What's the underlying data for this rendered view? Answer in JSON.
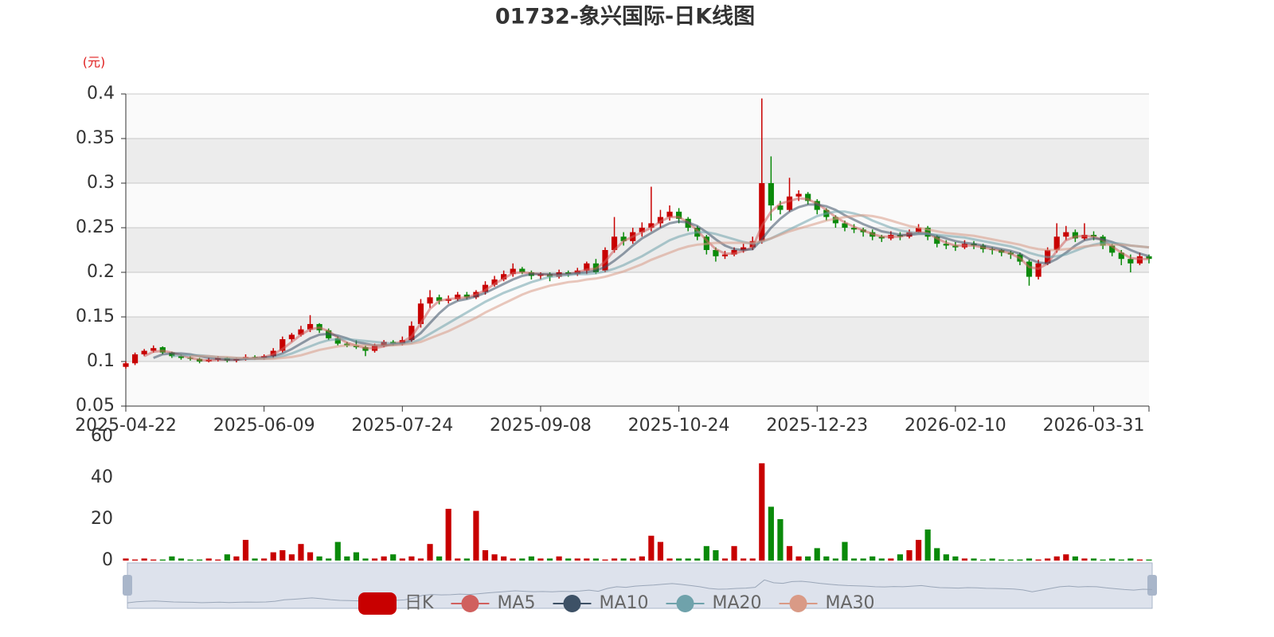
{
  "chart_data": {
    "type": "candlestick",
    "title": "01732-象兴国际-日K线图",
    "y_axis_name": "(元)",
    "candle_name": "日K",
    "up_color": "#c80000",
    "down_color": "#0a8a0a",
    "grid": true,
    "legend_position": "bottom",
    "categories": [
      "2025-04-22",
      null,
      null,
      null,
      null,
      null,
      null,
      null,
      null,
      null,
      null,
      null,
      null,
      null,
      null,
      "2025-06-09",
      null,
      null,
      null,
      null,
      null,
      null,
      null,
      null,
      null,
      null,
      null,
      null,
      null,
      null,
      "2025-07-24",
      null,
      null,
      null,
      null,
      null,
      null,
      null,
      null,
      null,
      null,
      null,
      null,
      null,
      null,
      "2025-09-08",
      null,
      null,
      null,
      null,
      null,
      null,
      null,
      null,
      null,
      null,
      null,
      null,
      null,
      null,
      "2025-10-24",
      null,
      null,
      null,
      null,
      null,
      null,
      null,
      null,
      null,
      null,
      null,
      null,
      null,
      null,
      "2025-12-23",
      null,
      null,
      null,
      null,
      null,
      null,
      null,
      null,
      null,
      null,
      null,
      null,
      null,
      null,
      "2026-02-10",
      null,
      null,
      null,
      null,
      null,
      null,
      null,
      null,
      null,
      null,
      null,
      null,
      null,
      null,
      "2026-03-31",
      null,
      null,
      null,
      null,
      null,
      null
    ],
    "open": [
      0.094,
      0.098,
      0.108,
      0.112,
      0.116,
      0.11,
      0.106,
      0.104,
      0.103,
      0.1,
      0.102,
      0.104,
      0.101,
      0.103,
      0.105,
      0.104,
      0.106,
      0.112,
      0.125,
      0.13,
      0.136,
      0.142,
      0.135,
      0.126,
      0.12,
      0.118,
      0.116,
      0.112,
      0.118,
      0.122,
      0.12,
      0.124,
      0.142,
      0.165,
      0.172,
      0.168,
      0.17,
      0.175,
      0.172,
      0.178,
      0.186,
      0.192,
      0.198,
      0.204,
      0.2,
      0.196,
      0.198,
      0.195,
      0.2,
      0.198,
      0.202,
      0.21,
      0.202,
      0.225,
      0.24,
      0.235,
      0.245,
      0.25,
      0.255,
      0.262,
      0.268,
      0.26,
      0.25,
      0.24,
      0.225,
      0.218,
      0.22,
      0.225,
      0.228,
      0.235,
      0.3,
      0.275,
      0.27,
      0.285,
      0.288,
      0.28,
      0.27,
      0.262,
      0.255,
      0.25,
      0.248,
      0.245,
      0.24,
      0.238,
      0.242,
      0.24,
      0.245,
      0.25,
      0.24,
      0.232,
      0.23,
      0.228,
      0.232,
      0.23,
      0.226,
      0.225,
      0.222,
      0.22,
      0.212,
      0.195,
      0.21,
      0.225,
      0.24,
      0.245,
      0.238,
      0.242,
      0.24,
      0.23,
      0.222,
      0.215,
      0.21,
      0.218
    ],
    "high": [
      0.1,
      0.11,
      0.114,
      0.118,
      0.117,
      0.111,
      0.108,
      0.106,
      0.104,
      0.104,
      0.106,
      0.105,
      0.104,
      0.108,
      0.107,
      0.108,
      0.115,
      0.128,
      0.132,
      0.14,
      0.152,
      0.143,
      0.137,
      0.128,
      0.122,
      0.124,
      0.118,
      0.12,
      0.124,
      0.124,
      0.128,
      0.145,
      0.17,
      0.18,
      0.175,
      0.174,
      0.178,
      0.178,
      0.18,
      0.19,
      0.196,
      0.202,
      0.21,
      0.206,
      0.202,
      0.2,
      0.2,
      0.203,
      0.202,
      0.205,
      0.212,
      0.215,
      0.228,
      0.262,
      0.245,
      0.25,
      0.256,
      0.296,
      0.27,
      0.275,
      0.272,
      0.262,
      0.252,
      0.242,
      0.228,
      0.224,
      0.228,
      0.232,
      0.24,
      0.395,
      0.33,
      0.28,
      0.306,
      0.292,
      0.29,
      0.282,
      0.272,
      0.264,
      0.258,
      0.254,
      0.25,
      0.248,
      0.242,
      0.246,
      0.245,
      0.248,
      0.254,
      0.252,
      0.242,
      0.236,
      0.234,
      0.236,
      0.235,
      0.232,
      0.228,
      0.226,
      0.224,
      0.222,
      0.214,
      0.214,
      0.228,
      0.255,
      0.252,
      0.248,
      0.255,
      0.246,
      0.242,
      0.232,
      0.225,
      0.22,
      0.222,
      0.22
    ],
    "low": [
      0.092,
      0.096,
      0.106,
      0.11,
      0.108,
      0.104,
      0.102,
      0.101,
      0.098,
      0.099,
      0.1,
      0.099,
      0.099,
      0.101,
      0.102,
      0.102,
      0.104,
      0.11,
      0.122,
      0.128,
      0.133,
      0.132,
      0.124,
      0.118,
      0.116,
      0.114,
      0.106,
      0.11,
      0.116,
      0.118,
      0.118,
      0.122,
      0.138,
      0.16,
      0.164,
      0.165,
      0.168,
      0.17,
      0.17,
      0.175,
      0.184,
      0.19,
      0.195,
      0.198,
      0.192,
      0.192,
      0.19,
      0.193,
      0.195,
      0.196,
      0.198,
      0.198,
      0.2,
      0.222,
      0.23,
      0.232,
      0.24,
      0.246,
      0.25,
      0.258,
      0.255,
      0.246,
      0.236,
      0.22,
      0.212,
      0.215,
      0.218,
      0.222,
      0.225,
      0.232,
      0.258,
      0.265,
      0.268,
      0.28,
      0.276,
      0.265,
      0.258,
      0.25,
      0.246,
      0.244,
      0.24,
      0.236,
      0.234,
      0.236,
      0.236,
      0.238,
      0.244,
      0.236,
      0.228,
      0.226,
      0.224,
      0.226,
      0.226,
      0.222,
      0.22,
      0.218,
      0.215,
      0.208,
      0.185,
      0.192,
      0.208,
      0.222,
      0.236,
      0.234,
      0.236,
      0.236,
      0.226,
      0.218,
      0.208,
      0.2,
      0.208,
      0.21
    ],
    "close": [
      0.098,
      0.108,
      0.112,
      0.115,
      0.11,
      0.106,
      0.104,
      0.103,
      0.1,
      0.102,
      0.104,
      0.101,
      0.103,
      0.105,
      0.104,
      0.106,
      0.112,
      0.125,
      0.13,
      0.136,
      0.142,
      0.135,
      0.126,
      0.12,
      0.118,
      0.116,
      0.112,
      0.118,
      0.122,
      0.12,
      0.124,
      0.14,
      0.165,
      0.172,
      0.168,
      0.17,
      0.175,
      0.172,
      0.178,
      0.186,
      0.192,
      0.198,
      0.204,
      0.2,
      0.196,
      0.198,
      0.195,
      0.2,
      0.198,
      0.202,
      0.21,
      0.2,
      0.225,
      0.24,
      0.235,
      0.245,
      0.25,
      0.255,
      0.262,
      0.268,
      0.26,
      0.25,
      0.24,
      0.225,
      0.218,
      0.22,
      0.225,
      0.228,
      0.235,
      0.3,
      0.275,
      0.27,
      0.285,
      0.288,
      0.28,
      0.27,
      0.262,
      0.255,
      0.25,
      0.248,
      0.245,
      0.24,
      0.238,
      0.242,
      0.24,
      0.245,
      0.25,
      0.24,
      0.232,
      0.23,
      0.228,
      0.232,
      0.23,
      0.226,
      0.225,
      0.222,
      0.22,
      0.212,
      0.195,
      0.21,
      0.225,
      0.24,
      0.245,
      0.238,
      0.242,
      0.24,
      0.23,
      0.222,
      0.215,
      0.21,
      0.218,
      0.215
    ],
    "ylim": [
      0.05,
      0.4
    ],
    "yticks": [
      0.05,
      0.1,
      0.15,
      0.2,
      0.25,
      0.3,
      0.35,
      0.4
    ],
    "ma_series": [
      {
        "name": "MA5",
        "color": "#d0605e",
        "values": [
          null,
          null,
          0.106,
          0.111,
          0.112,
          0.11,
          0.107,
          0.104,
          0.102,
          0.101,
          0.102,
          0.102,
          0.102,
          0.103,
          0.104,
          0.105,
          0.108,
          0.114,
          0.122,
          0.13,
          0.136,
          0.138,
          0.134,
          0.127,
          0.121,
          0.118,
          0.115,
          0.115,
          0.117,
          0.12,
          0.122,
          0.128,
          0.143,
          0.159,
          0.168,
          0.17,
          0.171,
          0.172,
          0.175,
          0.18,
          0.187,
          0.193,
          0.199,
          0.2,
          0.199,
          0.198,
          0.197,
          0.197,
          0.198,
          0.2,
          0.203,
          0.204,
          0.212,
          0.225,
          0.235,
          0.24,
          0.245,
          0.25,
          0.257,
          0.262,
          0.262,
          0.256,
          0.247,
          0.236,
          0.226,
          0.221,
          0.221,
          0.224,
          0.228,
          0.252,
          0.268,
          0.277,
          0.28,
          0.283,
          0.282,
          0.277,
          0.27,
          0.262,
          0.256,
          0.251,
          0.247,
          0.243,
          0.24,
          0.24,
          0.24,
          0.243,
          0.245,
          0.244,
          0.238,
          0.233,
          0.23,
          0.23,
          0.23,
          0.228,
          0.226,
          0.224,
          0.221,
          0.216,
          0.206,
          0.204,
          0.21,
          0.224,
          0.236,
          0.24,
          0.241,
          0.24,
          0.236,
          0.229,
          0.222,
          0.216,
          0.215,
          0.215
        ]
      },
      {
        "name": "MA10",
        "color": "#3d5166",
        "values": [
          null,
          null,
          null,
          0.104,
          0.108,
          0.109,
          0.109,
          0.108,
          0.106,
          0.104,
          0.103,
          0.102,
          0.102,
          0.103,
          0.103,
          0.104,
          0.106,
          0.109,
          0.114,
          0.12,
          0.126,
          0.13,
          0.131,
          0.129,
          0.126,
          0.122,
          0.12,
          0.118,
          0.118,
          0.119,
          0.12,
          0.124,
          0.132,
          0.143,
          0.154,
          0.163,
          0.168,
          0.17,
          0.173,
          0.177,
          0.182,
          0.187,
          0.192,
          0.196,
          0.198,
          0.198,
          0.198,
          0.198,
          0.198,
          0.199,
          0.2,
          0.202,
          0.206,
          0.213,
          0.221,
          0.23,
          0.238,
          0.244,
          0.25,
          0.255,
          0.257,
          0.256,
          0.252,
          0.245,
          0.237,
          0.23,
          0.226,
          0.225,
          0.226,
          0.237,
          0.25,
          0.26,
          0.268,
          0.273,
          0.276,
          0.276,
          0.274,
          0.27,
          0.264,
          0.259,
          0.254,
          0.25,
          0.246,
          0.244,
          0.242,
          0.242,
          0.243,
          0.243,
          0.241,
          0.238,
          0.235,
          0.233,
          0.232,
          0.23,
          0.228,
          0.226,
          0.224,
          0.221,
          0.215,
          0.211,
          0.21,
          0.215,
          0.222,
          0.23,
          0.236,
          0.238,
          0.237,
          0.234,
          0.23,
          0.225,
          0.221,
          0.218
        ]
      },
      {
        "name": "MA20",
        "color": "#6fa2ab",
        "values": [
          null,
          null,
          null,
          null,
          null,
          0.106,
          0.107,
          0.107,
          0.107,
          0.106,
          0.105,
          0.104,
          0.104,
          0.103,
          0.103,
          0.103,
          0.104,
          0.106,
          0.109,
          0.113,
          0.117,
          0.121,
          0.124,
          0.125,
          0.125,
          0.124,
          0.123,
          0.122,
          0.121,
          0.12,
          0.12,
          0.121,
          0.125,
          0.131,
          0.137,
          0.143,
          0.149,
          0.155,
          0.161,
          0.167,
          0.172,
          0.177,
          0.181,
          0.185,
          0.189,
          0.192,
          0.195,
          0.196,
          0.197,
          0.198,
          0.198,
          0.199,
          0.201,
          0.204,
          0.208,
          0.213,
          0.218,
          0.224,
          0.23,
          0.236,
          0.24,
          0.243,
          0.245,
          0.245,
          0.243,
          0.24,
          0.237,
          0.234,
          0.232,
          0.234,
          0.238,
          0.243,
          0.248,
          0.253,
          0.258,
          0.263,
          0.266,
          0.268,
          0.268,
          0.266,
          0.263,
          0.258,
          0.254,
          0.25,
          0.247,
          0.245,
          0.244,
          0.243,
          0.242,
          0.241,
          0.24,
          0.239,
          0.237,
          0.235,
          0.233,
          0.231,
          0.229,
          0.226,
          0.222,
          0.219,
          0.217,
          0.218,
          0.22,
          0.224,
          0.228,
          0.231,
          0.233,
          0.233,
          0.232,
          0.23,
          0.229,
          0.228
        ]
      },
      {
        "name": "MA30",
        "color": "#d99a86",
        "values": [
          null,
          null,
          null,
          null,
          null,
          null,
          null,
          0.106,
          0.106,
          0.106,
          0.105,
          0.105,
          0.104,
          0.104,
          0.103,
          0.103,
          0.103,
          0.104,
          0.105,
          0.107,
          0.11,
          0.113,
          0.115,
          0.117,
          0.118,
          0.118,
          0.118,
          0.118,
          0.118,
          0.118,
          0.119,
          0.12,
          0.122,
          0.126,
          0.13,
          0.134,
          0.139,
          0.144,
          0.149,
          0.155,
          0.16,
          0.165,
          0.17,
          0.175,
          0.179,
          0.182,
          0.185,
          0.187,
          0.189,
          0.19,
          0.192,
          0.193,
          0.195,
          0.198,
          0.201,
          0.205,
          0.209,
          0.214,
          0.218,
          0.222,
          0.226,
          0.229,
          0.231,
          0.232,
          0.233,
          0.233,
          0.233,
          0.233,
          0.233,
          0.235,
          0.238,
          0.242,
          0.246,
          0.249,
          0.252,
          0.255,
          0.258,
          0.26,
          0.262,
          0.263,
          0.264,
          0.263,
          0.261,
          0.258,
          0.255,
          0.252,
          0.25,
          0.248,
          0.246,
          0.244,
          0.243,
          0.242,
          0.241,
          0.239,
          0.237,
          0.235,
          0.233,
          0.231,
          0.228,
          0.226,
          0.225,
          0.225,
          0.226,
          0.227,
          0.229,
          0.23,
          0.231,
          0.231,
          0.231,
          0.23,
          0.229,
          0.228
        ]
      }
    ],
    "volume": {
      "ylim": [
        0,
        60
      ],
      "yticks": [
        0,
        20,
        40,
        60
      ],
      "values": [
        1,
        0.5,
        1,
        0.5,
        0.5,
        2,
        1,
        0.5,
        0.5,
        1,
        0.5,
        3,
        2,
        10,
        1,
        1,
        4,
        5,
        3,
        8,
        4,
        2,
        1,
        9,
        2,
        4,
        1,
        1,
        2,
        3,
        1,
        2,
        1,
        8,
        2,
        25,
        1,
        1,
        24,
        5,
        3,
        2,
        1,
        1,
        2,
        1,
        1,
        2,
        1,
        1,
        1,
        1,
        0.5,
        1,
        1,
        1,
        2,
        12,
        9,
        1,
        1,
        1,
        1,
        7,
        5,
        1,
        7,
        1,
        1,
        47,
        26,
        20,
        7,
        2,
        2,
        6,
        2,
        1,
        9,
        1,
        1,
        2,
        1,
        1,
        3,
        5,
        10,
        15,
        6,
        3,
        2,
        1,
        1,
        0.5,
        1,
        0.5,
        0.5,
        0.5,
        1,
        0.5,
        1,
        2,
        3,
        2,
        1,
        1,
        0.5,
        1,
        0.5,
        1,
        0.5,
        0.5
      ]
    }
  }
}
